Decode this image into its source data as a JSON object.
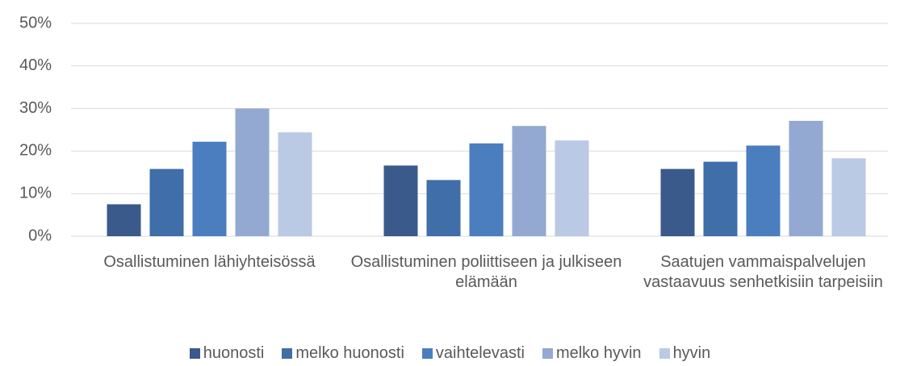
{
  "chart_data": {
    "type": "bar",
    "categories": [
      "Osallistuminen lähiyhteisössä",
      "Osallistuminen poliittiseen ja julkiseen elämään",
      "Saatujen vammaispalvelujen vastaavuus senhetkisiin tarpeisiin"
    ],
    "series": [
      {
        "name": "huonosti",
        "color": "#3a5a8c",
        "values": [
          7.5,
          16.6,
          15.8
        ]
      },
      {
        "name": "melko huonosti",
        "color": "#3f6ea8",
        "values": [
          15.8,
          13.2,
          17.5
        ]
      },
      {
        "name": "vaihtelevasti",
        "color": "#4a7ebf",
        "values": [
          22.2,
          21.8,
          21.3
        ]
      },
      {
        "name": "melko hyvin",
        "color": "#93a9d2",
        "values": [
          30,
          25.9,
          27.1
        ]
      },
      {
        "name": "hyvin",
        "color": "#bac9e4",
        "values": [
          24.4,
          22.5,
          18.3
        ]
      }
    ],
    "ylim": [
      0,
      50
    ],
    "yticks": [
      {
        "value": 0,
        "label": "0%"
      },
      {
        "value": 10,
        "label": "10%"
      },
      {
        "value": 20,
        "label": "20%"
      },
      {
        "value": 30,
        "label": "30%"
      },
      {
        "value": 40,
        "label": "40%"
      },
      {
        "value": 50,
        "label": "50%"
      }
    ],
    "grid": true,
    "legend": "bottom"
  }
}
